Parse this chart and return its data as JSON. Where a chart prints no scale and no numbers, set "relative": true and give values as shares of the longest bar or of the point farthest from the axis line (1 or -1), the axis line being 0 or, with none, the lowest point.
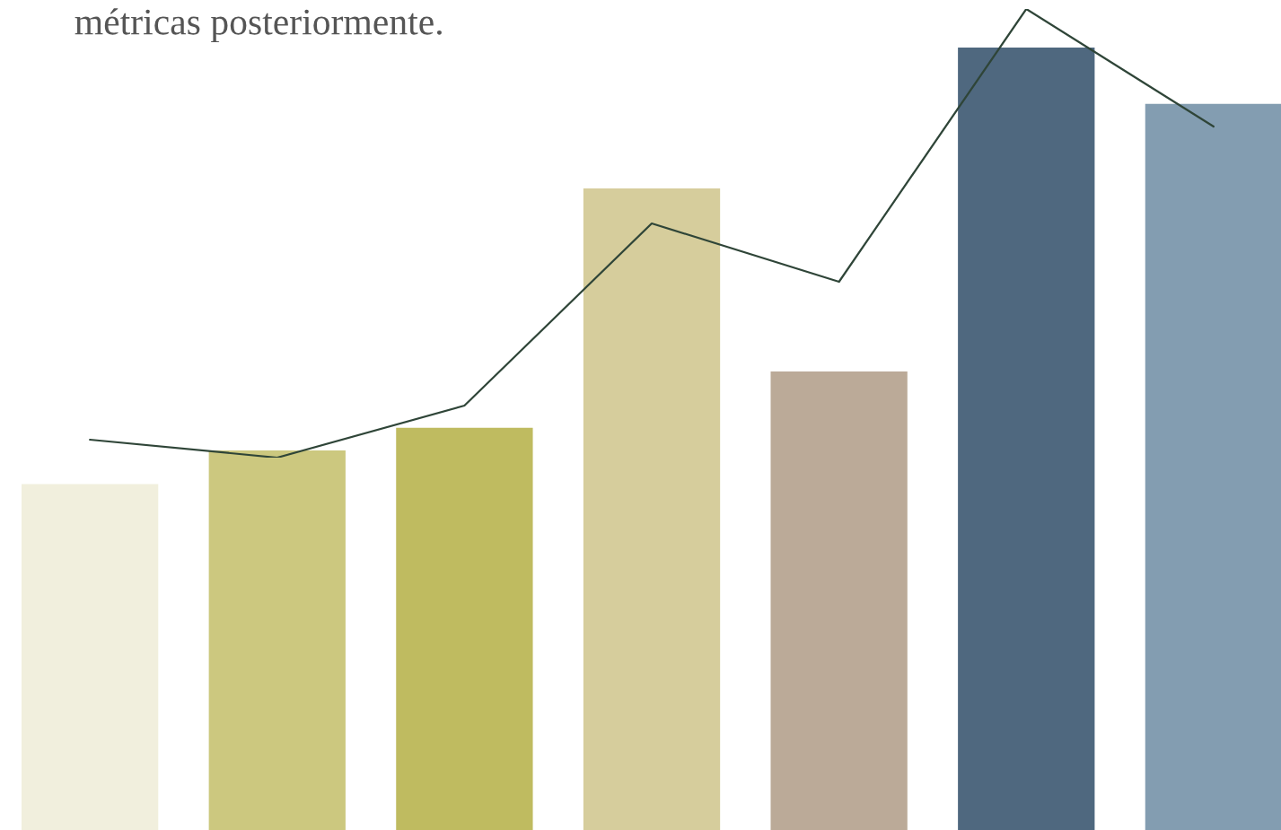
{
  "chart_data": [
    {
      "type": "bar",
      "relative": true,
      "title": "métricas posteriormente.",
      "categories": [
        null,
        null,
        null,
        null,
        null,
        null,
        null
      ],
      "colors": [
        "#f1efdd",
        "#ccc87f",
        "#bfbb60",
        "#d6cd9c",
        "#bbaa98",
        "#4f687f",
        "#839db1"
      ],
      "values": [
        0.442,
        0.485,
        0.514,
        0.82,
        0.586,
        1.0,
        0.928
      ]
    },
    {
      "type": "line",
      "relative": true,
      "categories": [
        null,
        null,
        null,
        null,
        null,
        null,
        null
      ],
      "marker": "none",
      "line_style": "solid",
      "series": [
        {
          "color": "#2f4538",
          "values": [
            0.04,
            0.0,
            0.116,
            0.522,
            0.392,
            1.0,
            0.738
          ]
        }
      ]
    }
  ]
}
